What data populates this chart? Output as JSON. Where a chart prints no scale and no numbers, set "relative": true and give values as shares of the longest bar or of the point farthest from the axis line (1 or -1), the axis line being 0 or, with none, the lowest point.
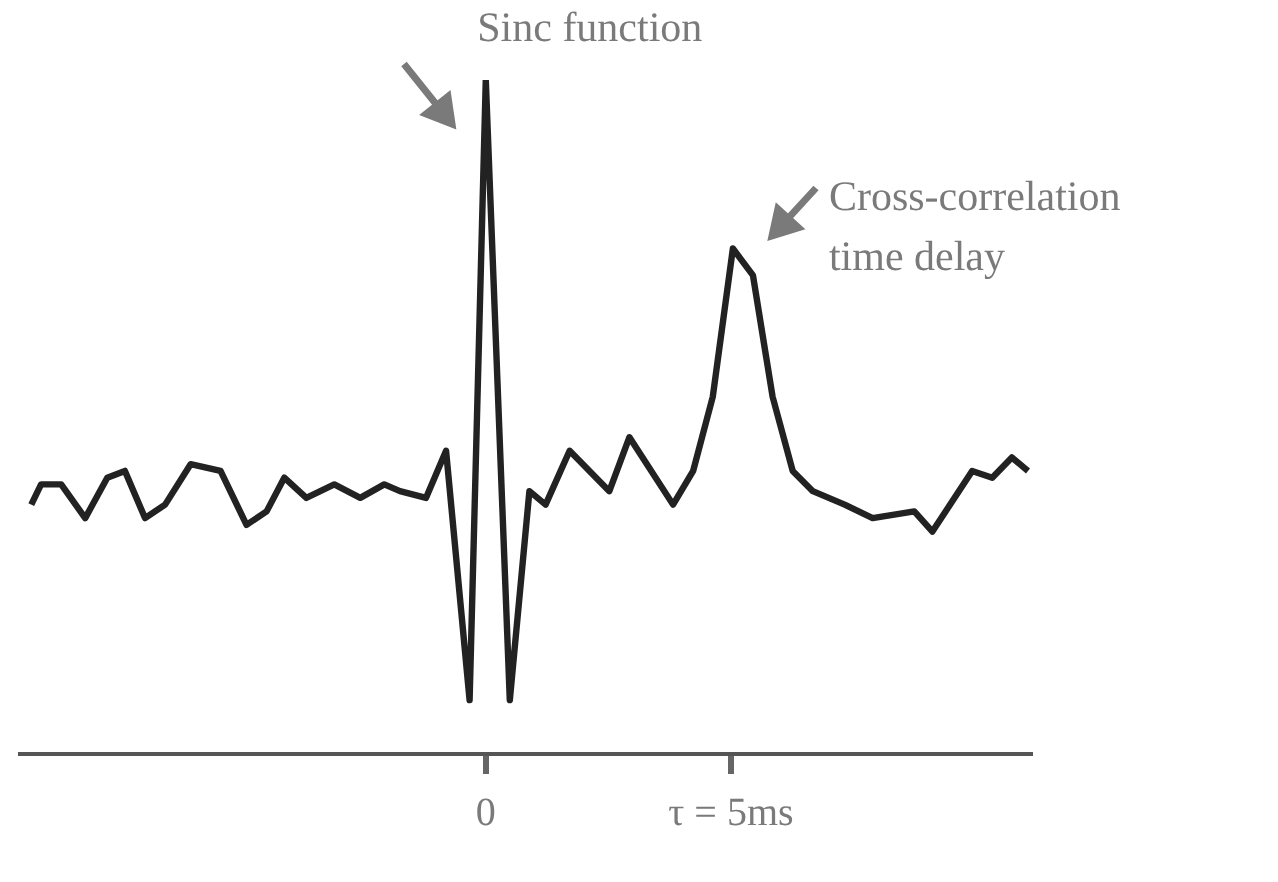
{
  "chart_data": {
    "type": "line",
    "relative": true,
    "legend": false,
    "grid": false,
    "marker": "none",
    "tick_labels": "x",
    "xlim": [
      -9.5,
      11.1
    ],
    "xticks": [
      {
        "value": 0,
        "label": "0"
      },
      {
        "value": 5,
        "label": "τ = 5ms"
      }
    ],
    "series": [
      {
        "color": "#222222",
        "x": [
          -9.27,
          -9.07,
          -8.66,
          -8.17,
          -7.72,
          -7.36,
          -6.95,
          -6.54,
          -6.02,
          -5.41,
          -4.88,
          -4.47,
          -4.11,
          -3.66,
          -3.09,
          -2.56,
          -2.07,
          -1.75,
          -1.22,
          -0.81,
          -0.33,
          0,
          0.49,
          0.89,
          1.22,
          1.71,
          2.52,
          2.93,
          3.82,
          4.23,
          4.63,
          5.04,
          5.45,
          5.85,
          6.26,
          6.67,
          7.32,
          7.89,
          8.74,
          9.11,
          9.92,
          10.33,
          10.73,
          11.06
        ],
        "values": [
          0.37,
          0.4,
          0.4,
          0.35,
          0.41,
          0.42,
          0.35,
          0.37,
          0.43,
          0.42,
          0.34,
          0.36,
          0.41,
          0.38,
          0.4,
          0.38,
          0.4,
          0.39,
          0.38,
          0.45,
          0.08,
          1,
          0.08,
          0.39,
          0.37,
          0.45,
          0.39,
          0.47,
          0.37,
          0.42,
          0.53,
          0.75,
          0.71,
          0.53,
          0.42,
          0.39,
          0.37,
          0.35,
          0.36,
          0.33,
          0.42,
          0.41,
          0.44,
          0.42
        ]
      }
    ],
    "annotations": [
      {
        "text": "Sinc function",
        "x": 0,
        "y": 1
      },
      {
        "text": "Cross-correlation time delay",
        "x": 5.04,
        "y": 0.75
      }
    ]
  }
}
